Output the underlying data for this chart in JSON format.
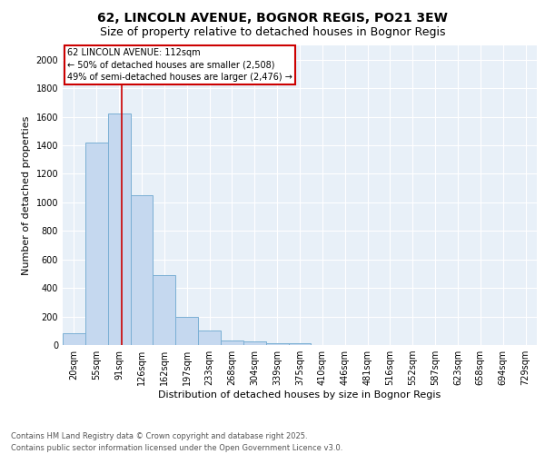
{
  "title1": "62, LINCOLN AVENUE, BOGNOR REGIS, PO21 3EW",
  "title2": "Size of property relative to detached houses in Bognor Regis",
  "xlabel": "Distribution of detached houses by size in Bognor Regis",
  "ylabel": "Number of detached properties",
  "categories": [
    "20sqm",
    "55sqm",
    "91sqm",
    "126sqm",
    "162sqm",
    "197sqm",
    "233sqm",
    "268sqm",
    "304sqm",
    "339sqm",
    "375sqm",
    "410sqm",
    "446sqm",
    "481sqm",
    "516sqm",
    "552sqm",
    "587sqm",
    "623sqm",
    "658sqm",
    "694sqm",
    "729sqm"
  ],
  "values": [
    80,
    1420,
    1620,
    1050,
    490,
    200,
    100,
    30,
    25,
    15,
    15,
    0,
    0,
    0,
    0,
    0,
    0,
    0,
    0,
    0,
    0
  ],
  "bar_color": "#c5d8ef",
  "bar_edge_color": "#7aafd4",
  "background_color": "#e8f0f8",
  "grid_color": "#ffffff",
  "red_line_x": 2.13,
  "annotation_text_line1": "62 LINCOLN AVENUE: 112sqm",
  "annotation_text_line2": "← 50% of detached houses are smaller (2,508)",
  "annotation_text_line3": "49% of semi-detached houses are larger (2,476) →",
  "annotation_box_color": "#cc0000",
  "ylim": [
    0,
    2100
  ],
  "yticks": [
    0,
    200,
    400,
    600,
    800,
    1000,
    1200,
    1400,
    1600,
    1800,
    2000
  ],
  "footnote1": "Contains HM Land Registry data © Crown copyright and database right 2025.",
  "footnote2": "Contains public sector information licensed under the Open Government Licence v3.0.",
  "title_fontsize": 10,
  "subtitle_fontsize": 9,
  "axis_fontsize": 8,
  "tick_fontsize": 7,
  "annot_fontsize": 7
}
